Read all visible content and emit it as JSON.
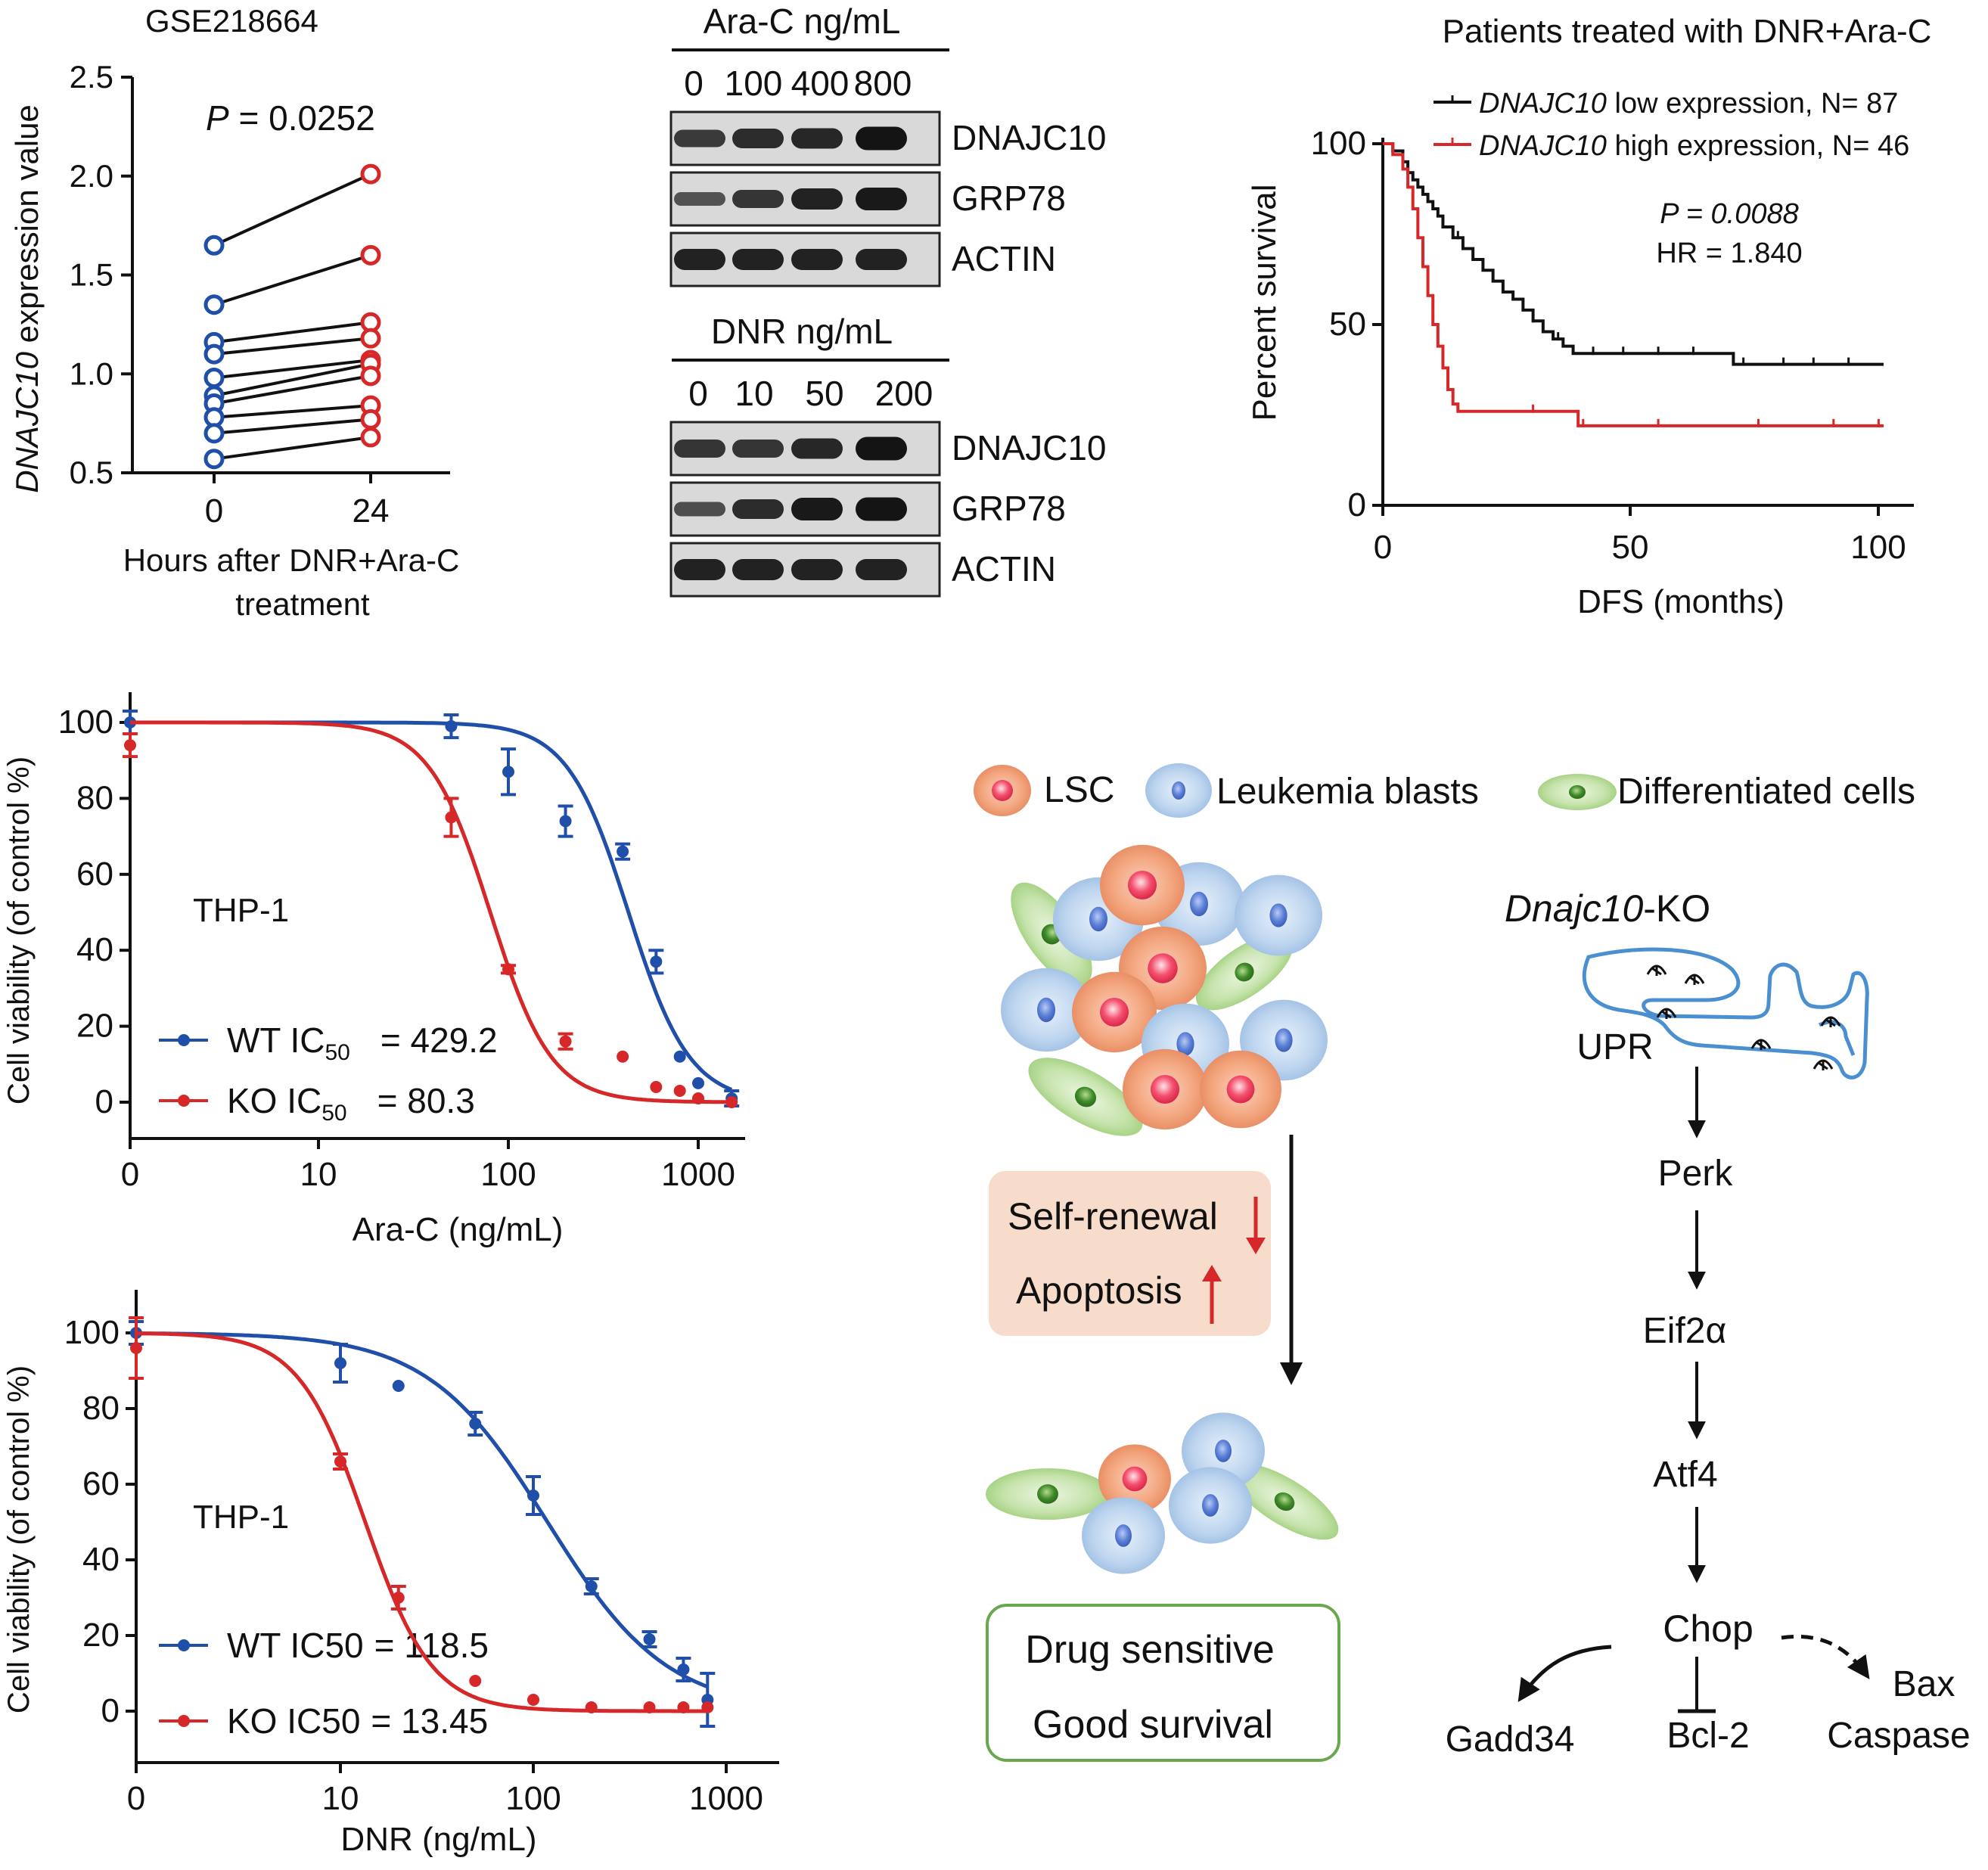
{
  "colors": {
    "blue": "#1f4fa8",
    "red": "#d62828",
    "black": "#111111",
    "green_box": "#6aa84f",
    "pink_box": "#f8dccb"
  },
  "chart_data": [
    {
      "id": "paired",
      "type": "scatter",
      "title": "GSE218664",
      "xlabel_lines": [
        "Hours after DNR+Ara-C",
        "treatment"
      ],
      "ylabel_italic": "DNAJC10",
      "ylabel_rest": " expression value",
      "xticks": [
        "0",
        "24"
      ],
      "yticks": [
        "0.5",
        "1.0",
        "1.5",
        "2.0",
        "2.5"
      ],
      "ylim": [
        0.5,
        2.5
      ],
      "pvalue_label": "P",
      "pvalue_text": " = 0.0252",
      "pairs": [
        {
          "h0": 1.65,
          "h24": 2.01
        },
        {
          "h0": 1.35,
          "h24": 1.6
        },
        {
          "h0": 1.16,
          "h24": 1.26
        },
        {
          "h0": 1.1,
          "h24": 1.18
        },
        {
          "h0": 0.98,
          "h24": 1.07
        },
        {
          "h0": 0.89,
          "h24": 1.05
        },
        {
          "h0": 0.85,
          "h24": 0.99
        },
        {
          "h0": 0.78,
          "h24": 0.84
        },
        {
          "h0": 0.7,
          "h24": 0.77
        },
        {
          "h0": 0.57,
          "h24": 0.68
        }
      ]
    },
    {
      "id": "survival",
      "type": "line",
      "title": "Patients treated with DNR+Ara-C",
      "xlabel": "DFS (months)",
      "ylabel": "Percent survival",
      "xticks": [
        "0",
        "50",
        "100"
      ],
      "yticks": [
        "0",
        "50",
        "100"
      ],
      "xlim": [
        0,
        100
      ],
      "ylim": [
        0,
        100
      ],
      "pvalue_text": "P = 0.0088",
      "hr_text": "HR = 1.840",
      "series": [
        {
          "name_italic": "DNAJC10",
          "name_rest": " low expression,   N= 87",
          "color": "black",
          "points": [
            [
              0,
              100
            ],
            [
              2,
              98
            ],
            [
              4,
              95
            ],
            [
              5,
              92
            ],
            [
              6,
              90
            ],
            [
              7,
              88
            ],
            [
              8,
              86
            ],
            [
              9,
              84
            ],
            [
              10,
              82
            ],
            [
              11,
              80
            ],
            [
              12,
              77
            ],
            [
              14,
              74
            ],
            [
              16,
              71
            ],
            [
              18,
              68
            ],
            [
              20,
              65
            ],
            [
              22,
              62
            ],
            [
              24,
              59
            ],
            [
              26,
              57
            ],
            [
              28,
              54
            ],
            [
              30,
              51
            ],
            [
              32,
              48
            ],
            [
              34,
              46
            ],
            [
              36,
              44
            ],
            [
              38,
              42
            ],
            [
              50,
              42
            ],
            [
              68,
              42
            ],
            [
              70,
              39
            ],
            [
              100,
              39
            ]
          ],
          "censor": [
            15,
            24,
            30,
            35,
            42,
            48,
            55,
            62,
            72,
            80,
            86,
            93
          ]
        },
        {
          "name_italic": "DNAJC10",
          "name_rest": " high expression, N= 46",
          "color": "red",
          "points": [
            [
              0,
              100
            ],
            [
              2,
              97
            ],
            [
              4,
              93
            ],
            [
              5,
              88
            ],
            [
              6,
              82
            ],
            [
              7,
              74
            ],
            [
              8,
              66
            ],
            [
              9,
              58
            ],
            [
              10,
              50
            ],
            [
              11,
              44
            ],
            [
              12,
              38
            ],
            [
              13,
              32
            ],
            [
              14,
              28
            ],
            [
              15,
              26
            ],
            [
              25,
              26
            ],
            [
              38,
              26
            ],
            [
              39,
              22
            ],
            [
              100,
              22
            ]
          ],
          "censor": [
            30,
            40,
            55,
            75,
            90,
            99
          ]
        }
      ]
    },
    {
      "id": "arac",
      "type": "line",
      "xlabel": "Ara-C (ng/mL)",
      "ylabel": "Cell viability (of control %)",
      "cell_line": "THP-1",
      "xticks": [
        "0",
        "10",
        "100",
        "1000"
      ],
      "yticks": [
        "0",
        "20",
        "40",
        "60",
        "80",
        "100"
      ],
      "ylim": [
        -10,
        105
      ],
      "series": [
        {
          "name": "WT IC",
          "sub": "50",
          "value_text": "= 429.2",
          "color": "blue",
          "ic50": 429.2,
          "hill": 2.7,
          "x": [
            1,
            50,
            100,
            200,
            400,
            600,
            800,
            1000,
            1500
          ],
          "y": [
            100,
            99,
            87,
            74,
            66,
            37,
            12,
            5,
            1
          ],
          "err": [
            3,
            3,
            6,
            4,
            2,
            3,
            0,
            0,
            2
          ]
        },
        {
          "name": "KO IC",
          "sub": "50",
          "value_text": "= 80.3",
          "color": "red",
          "ic50": 80.3,
          "hill": 2.7,
          "x": [
            1,
            50,
            100,
            200,
            400,
            600,
            800,
            1000,
            1500
          ],
          "y": [
            94,
            75,
            35,
            16,
            12,
            4,
            3,
            1,
            0
          ],
          "err": [
            3,
            5,
            1,
            2,
            0,
            0,
            0,
            0,
            0
          ]
        }
      ]
    },
    {
      "id": "dnr",
      "type": "line",
      "xlabel": "DNR (ng/mL)",
      "ylabel": "Cell viability (of control %)",
      "cell_line": "THP-1",
      "xticks": [
        "0",
        "10",
        "100",
        "1000"
      ],
      "yticks": [
        "0",
        "20",
        "40",
        "60",
        "80",
        "100"
      ],
      "ylim": [
        -10,
        105
      ],
      "series": [
        {
          "name": "WT IC50",
          "sub": "",
          "value_text": "= 118.5",
          "color": "blue",
          "ic50": 118.5,
          "hill": 1.4,
          "x": [
            1,
            10,
            20,
            50,
            100,
            200,
            400,
            600,
            800
          ],
          "y": [
            100,
            92,
            86,
            76,
            57,
            33,
            19,
            11,
            3
          ],
          "err": [
            3,
            5,
            0,
            3,
            5,
            2,
            2,
            3,
            7
          ]
        },
        {
          "name": "KO IC50",
          "sub": "",
          "value_text": "= 13.45",
          "color": "red",
          "ic50": 13.45,
          "hill": 2.5,
          "x": [
            1,
            10,
            20,
            50,
            100,
            200,
            400,
            600,
            800
          ],
          "y": [
            96,
            66,
            30,
            8,
            3,
            1,
            1,
            1,
            1
          ],
          "err": [
            8,
            2,
            3,
            0,
            0,
            0,
            0,
            0,
            0
          ]
        }
      ]
    }
  ],
  "blots": {
    "arac": {
      "title": "Ara-C ng/mL",
      "lanes": [
        "0",
        "100",
        "400",
        "800"
      ],
      "rows": [
        {
          "label": "DNAJC10",
          "intensity": [
            0.55,
            0.7,
            0.75,
            0.95
          ]
        },
        {
          "label": "GRP78",
          "intensity": [
            0.3,
            0.6,
            0.8,
            0.9
          ]
        },
        {
          "label": "ACTIN",
          "intensity": [
            0.8,
            0.8,
            0.8,
            0.8
          ]
        }
      ]
    },
    "dnr": {
      "title": "DNR ng/mL",
      "lanes": [
        "0",
        "10",
        "50",
        "200"
      ],
      "rows": [
        {
          "label": "DNAJC10",
          "intensity": [
            0.6,
            0.6,
            0.75,
            0.95
          ]
        },
        {
          "label": "GRP78",
          "intensity": [
            0.35,
            0.7,
            0.9,
            0.95
          ]
        },
        {
          "label": "ACTIN",
          "intensity": [
            0.8,
            0.8,
            0.8,
            0.8
          ]
        }
      ]
    }
  },
  "diagram": {
    "legend": [
      {
        "label": "LSC",
        "kind": "lsc"
      },
      {
        "label": "Leukemia blasts",
        "kind": "blast"
      },
      {
        "label": "Differentiated cells",
        "kind": "diff"
      }
    ],
    "box1_lines": [
      "Self-renewal",
      "Apoptosis"
    ],
    "box2_lines": [
      "Drug sensitive",
      "Good survival"
    ],
    "ko_italic": "Dnajc10",
    "ko_rest": "-KO",
    "pathway": [
      "UPR",
      "Perk",
      "Eif2α",
      "Atf4",
      "Chop"
    ],
    "outputs": [
      "Gadd34",
      "Bcl-2",
      "Bax",
      "Caspase"
    ]
  }
}
